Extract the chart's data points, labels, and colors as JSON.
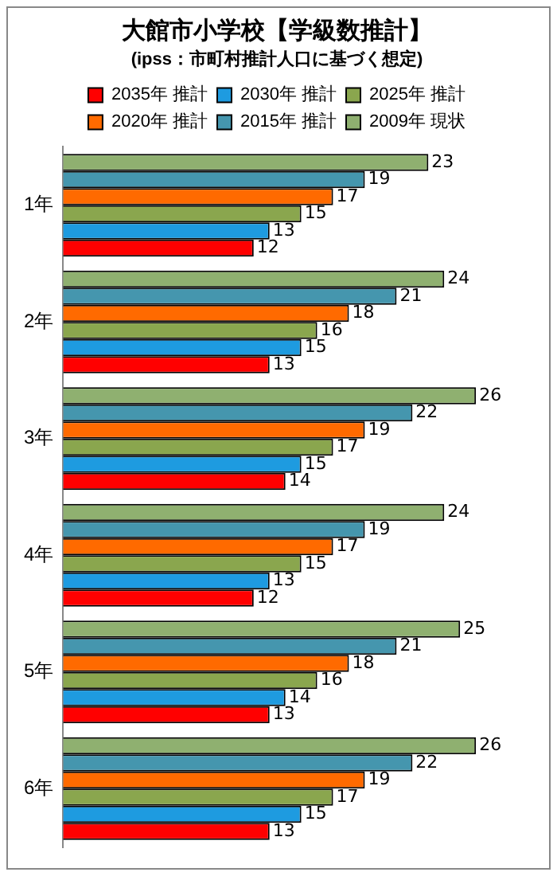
{
  "chart_data": {
    "type": "bar",
    "orientation": "horizontal",
    "title": "大館市小学校【学級数推計】",
    "subtitle": "(ipss：市町村推計人口に基づく想定)",
    "categories": [
      "1年",
      "2年",
      "3年",
      "4年",
      "5年",
      "6年"
    ],
    "legend": "top",
    "data_labels": true,
    "grid": false,
    "series": [
      {
        "name": "2009年 現状",
        "color": "#8fb070",
        "values": [
          23,
          24,
          26,
          24,
          25,
          26
        ]
      },
      {
        "name": "2015年 推計",
        "color": "#4596ae",
        "values": [
          19,
          21,
          22,
          19,
          21,
          22
        ]
      },
      {
        "name": "2020年 推計",
        "color": "#ff6a00",
        "values": [
          17,
          18,
          19,
          17,
          18,
          19
        ]
      },
      {
        "name": "2025年 推計",
        "color": "#8aa64e",
        "values": [
          15,
          16,
          17,
          15,
          16,
          17
        ]
      },
      {
        "name": "2030年 推計",
        "color": "#1e9be0",
        "values": [
          13,
          15,
          15,
          13,
          14,
          15
        ]
      },
      {
        "name": "2035年 推計",
        "color": "#ff0000",
        "values": [
          12,
          13,
          14,
          12,
          13,
          13
        ]
      }
    ]
  }
}
